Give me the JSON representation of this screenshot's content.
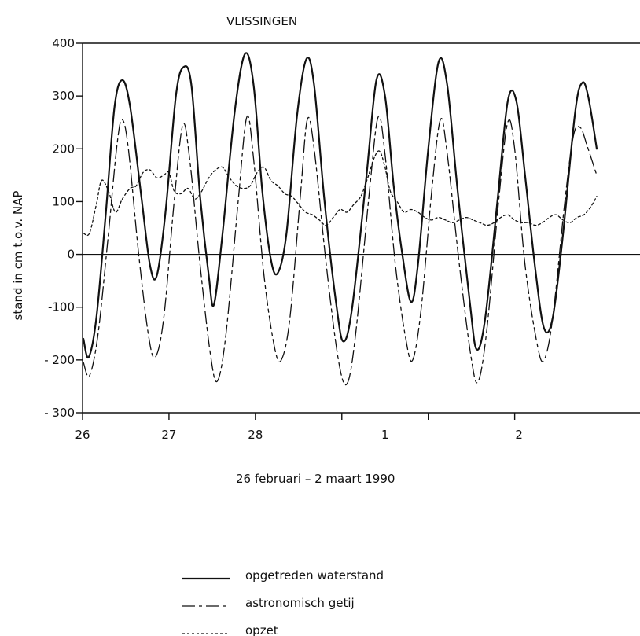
{
  "chart_data": {
    "type": "line",
    "title": "VLISSINGEN",
    "xlabel": "26 februari  –  2 maart  1990",
    "ylabel": "stand in cm t.o.v. NAP",
    "ylim": [
      -300,
      400
    ],
    "xlim": [
      0,
      6.45
    ],
    "grid": false,
    "zero_line": true,
    "y_ticks": [
      400,
      300,
      200,
      100,
      0,
      -100,
      -200,
      -300
    ],
    "y_tick_labels": [
      "400",
      "300",
      "200",
      "100",
      "0",
      "-100",
      "- 200",
      "- 300"
    ],
    "x_ticks": [
      0,
      1,
      2,
      3,
      4,
      5
    ],
    "x_tick_labels": [
      "26",
      "27",
      "28",
      "1",
      "2"
    ],
    "x_tick_positions": [
      0,
      1,
      2,
      4,
      5
    ],
    "x_label_positions": [
      0,
      1,
      2,
      3.5,
      5.05
    ],
    "legend_position": "bottom-center",
    "series": [
      {
        "name": "opgetreden waterstand",
        "style": "solid",
        "color": "#111111",
        "peaks": [
          [
            0.01,
            -160
          ],
          [
            0.07,
            -195
          ],
          [
            0.16,
            -120
          ],
          [
            0.27,
            80
          ],
          [
            0.37,
            280
          ],
          [
            0.46,
            330
          ],
          [
            0.55,
            280
          ],
          [
            0.68,
            110
          ],
          [
            0.78,
            -20
          ],
          [
            0.86,
            -40
          ],
          [
            0.96,
            80
          ],
          [
            1.08,
            300
          ],
          [
            1.17,
            355
          ],
          [
            1.26,
            320
          ],
          [
            1.36,
            110
          ],
          [
            1.46,
            -40
          ],
          [
            1.52,
            -95
          ],
          [
            1.62,
            40
          ],
          [
            1.76,
            270
          ],
          [
            1.88,
            380
          ],
          [
            1.98,
            320
          ],
          [
            2.08,
            120
          ],
          [
            2.18,
            -10
          ],
          [
            2.26,
            -35
          ],
          [
            2.36,
            40
          ],
          [
            2.48,
            260
          ],
          [
            2.59,
            370
          ],
          [
            2.68,
            320
          ],
          [
            2.8,
            100
          ],
          [
            2.94,
            -100
          ],
          [
            3.02,
            -165
          ],
          [
            3.12,
            -100
          ],
          [
            3.28,
            140
          ],
          [
            3.4,
            330
          ],
          [
            3.5,
            300
          ],
          [
            3.6,
            130
          ],
          [
            3.7,
            0
          ],
          [
            3.8,
            -90
          ],
          [
            3.88,
            -20
          ],
          [
            4.0,
            200
          ],
          [
            4.12,
            365
          ],
          [
            4.22,
            320
          ],
          [
            4.34,
            120
          ],
          [
            4.48,
            -90
          ],
          [
            4.56,
            -180
          ],
          [
            4.66,
            -120
          ],
          [
            4.8,
            100
          ],
          [
            4.92,
            290
          ],
          [
            5.02,
            290
          ],
          [
            5.12,
            150
          ],
          [
            5.24,
            -30
          ],
          [
            5.34,
            -140
          ],
          [
            5.44,
            -120
          ],
          [
            5.56,
            40
          ],
          [
            5.7,
            270
          ],
          [
            5.78,
            325
          ],
          [
            5.85,
            300
          ],
          [
            5.95,
            200
          ]
        ]
      },
      {
        "name": "astronomisch getij",
        "style": "dashdot",
        "color": "#111111",
        "peaks": [
          [
            0.01,
            -205
          ],
          [
            0.08,
            -230
          ],
          [
            0.18,
            -150
          ],
          [
            0.3,
            40
          ],
          [
            0.4,
            210
          ],
          [
            0.46,
            255
          ],
          [
            0.53,
            200
          ],
          [
            0.65,
            0
          ],
          [
            0.76,
            -150
          ],
          [
            0.84,
            -195
          ],
          [
            0.94,
            -120
          ],
          [
            1.06,
            100
          ],
          [
            1.16,
            245
          ],
          [
            1.24,
            180
          ],
          [
            1.36,
            -20
          ],
          [
            1.48,
            -190
          ],
          [
            1.56,
            -240
          ],
          [
            1.66,
            -150
          ],
          [
            1.8,
            100
          ],
          [
            1.9,
            260
          ],
          [
            1.98,
            180
          ],
          [
            2.1,
            -40
          ],
          [
            2.22,
            -175
          ],
          [
            2.3,
            -200
          ],
          [
            2.4,
            -120
          ],
          [
            2.52,
            110
          ],
          [
            2.6,
            255
          ],
          [
            2.68,
            200
          ],
          [
            2.82,
            -20
          ],
          [
            2.96,
            -200
          ],
          [
            3.06,
            -245
          ],
          [
            3.16,
            -150
          ],
          [
            3.32,
            120
          ],
          [
            3.42,
            260
          ],
          [
            3.5,
            190
          ],
          [
            3.62,
            -20
          ],
          [
            3.74,
            -160
          ],
          [
            3.82,
            -200
          ],
          [
            3.92,
            -100
          ],
          [
            4.04,
            120
          ],
          [
            4.14,
            255
          ],
          [
            4.22,
            190
          ],
          [
            4.36,
            -20
          ],
          [
            4.5,
            -200
          ],
          [
            4.58,
            -240
          ],
          [
            4.68,
            -140
          ],
          [
            4.82,
            110
          ],
          [
            4.92,
            250
          ],
          [
            5.0,
            200
          ],
          [
            5.12,
            -20
          ],
          [
            5.26,
            -170
          ],
          [
            5.34,
            -200
          ],
          [
            5.44,
            -120
          ],
          [
            5.58,
            100
          ],
          [
            5.68,
            225
          ],
          [
            5.76,
            240
          ],
          [
            5.84,
            205
          ],
          [
            5.95,
            150
          ]
        ]
      },
      {
        "name": "opzet",
        "style": "dotted",
        "color": "#111111",
        "peaks": [
          [
            0.01,
            40
          ],
          [
            0.08,
            40
          ],
          [
            0.16,
            95
          ],
          [
            0.22,
            140
          ],
          [
            0.3,
            120
          ],
          [
            0.38,
            80
          ],
          [
            0.46,
            105
          ],
          [
            0.55,
            125
          ],
          [
            0.62,
            130
          ],
          [
            0.7,
            155
          ],
          [
            0.78,
            160
          ],
          [
            0.86,
            145
          ],
          [
            0.94,
            150
          ],
          [
            1.0,
            155
          ],
          [
            1.06,
            120
          ],
          [
            1.14,
            115
          ],
          [
            1.22,
            125
          ],
          [
            1.3,
            105
          ],
          [
            1.38,
            120
          ],
          [
            1.46,
            145
          ],
          [
            1.54,
            160
          ],
          [
            1.62,
            165
          ],
          [
            1.7,
            145
          ],
          [
            1.78,
            130
          ],
          [
            1.86,
            125
          ],
          [
            1.94,
            130
          ],
          [
            2.02,
            155
          ],
          [
            2.1,
            165
          ],
          [
            2.18,
            140
          ],
          [
            2.26,
            130
          ],
          [
            2.34,
            115
          ],
          [
            2.42,
            110
          ],
          [
            2.5,
            95
          ],
          [
            2.58,
            80
          ],
          [
            2.66,
            75
          ],
          [
            2.74,
            65
          ],
          [
            2.82,
            55
          ],
          [
            2.9,
            70
          ],
          [
            2.98,
            85
          ],
          [
            3.06,
            80
          ],
          [
            3.14,
            95
          ],
          [
            3.22,
            110
          ],
          [
            3.3,
            145
          ],
          [
            3.38,
            185
          ],
          [
            3.44,
            195
          ],
          [
            3.5,
            165
          ],
          [
            3.56,
            120
          ],
          [
            3.64,
            100
          ],
          [
            3.72,
            80
          ],
          [
            3.8,
            85
          ],
          [
            3.88,
            80
          ],
          [
            3.96,
            70
          ],
          [
            4.04,
            65
          ],
          [
            4.12,
            70
          ],
          [
            4.2,
            65
          ],
          [
            4.28,
            60
          ],
          [
            4.36,
            65
          ],
          [
            4.44,
            70
          ],
          [
            4.52,
            65
          ],
          [
            4.6,
            60
          ],
          [
            4.68,
            55
          ],
          [
            4.76,
            60
          ],
          [
            4.84,
            70
          ],
          [
            4.92,
            75
          ],
          [
            5.0,
            65
          ],
          [
            5.08,
            60
          ],
          [
            5.16,
            60
          ],
          [
            5.24,
            55
          ],
          [
            5.32,
            60
          ],
          [
            5.4,
            70
          ],
          [
            5.48,
            75
          ],
          [
            5.56,
            65
          ],
          [
            5.64,
            60
          ],
          [
            5.72,
            70
          ],
          [
            5.8,
            75
          ],
          [
            5.88,
            90
          ],
          [
            5.95,
            110
          ]
        ]
      }
    ]
  }
}
